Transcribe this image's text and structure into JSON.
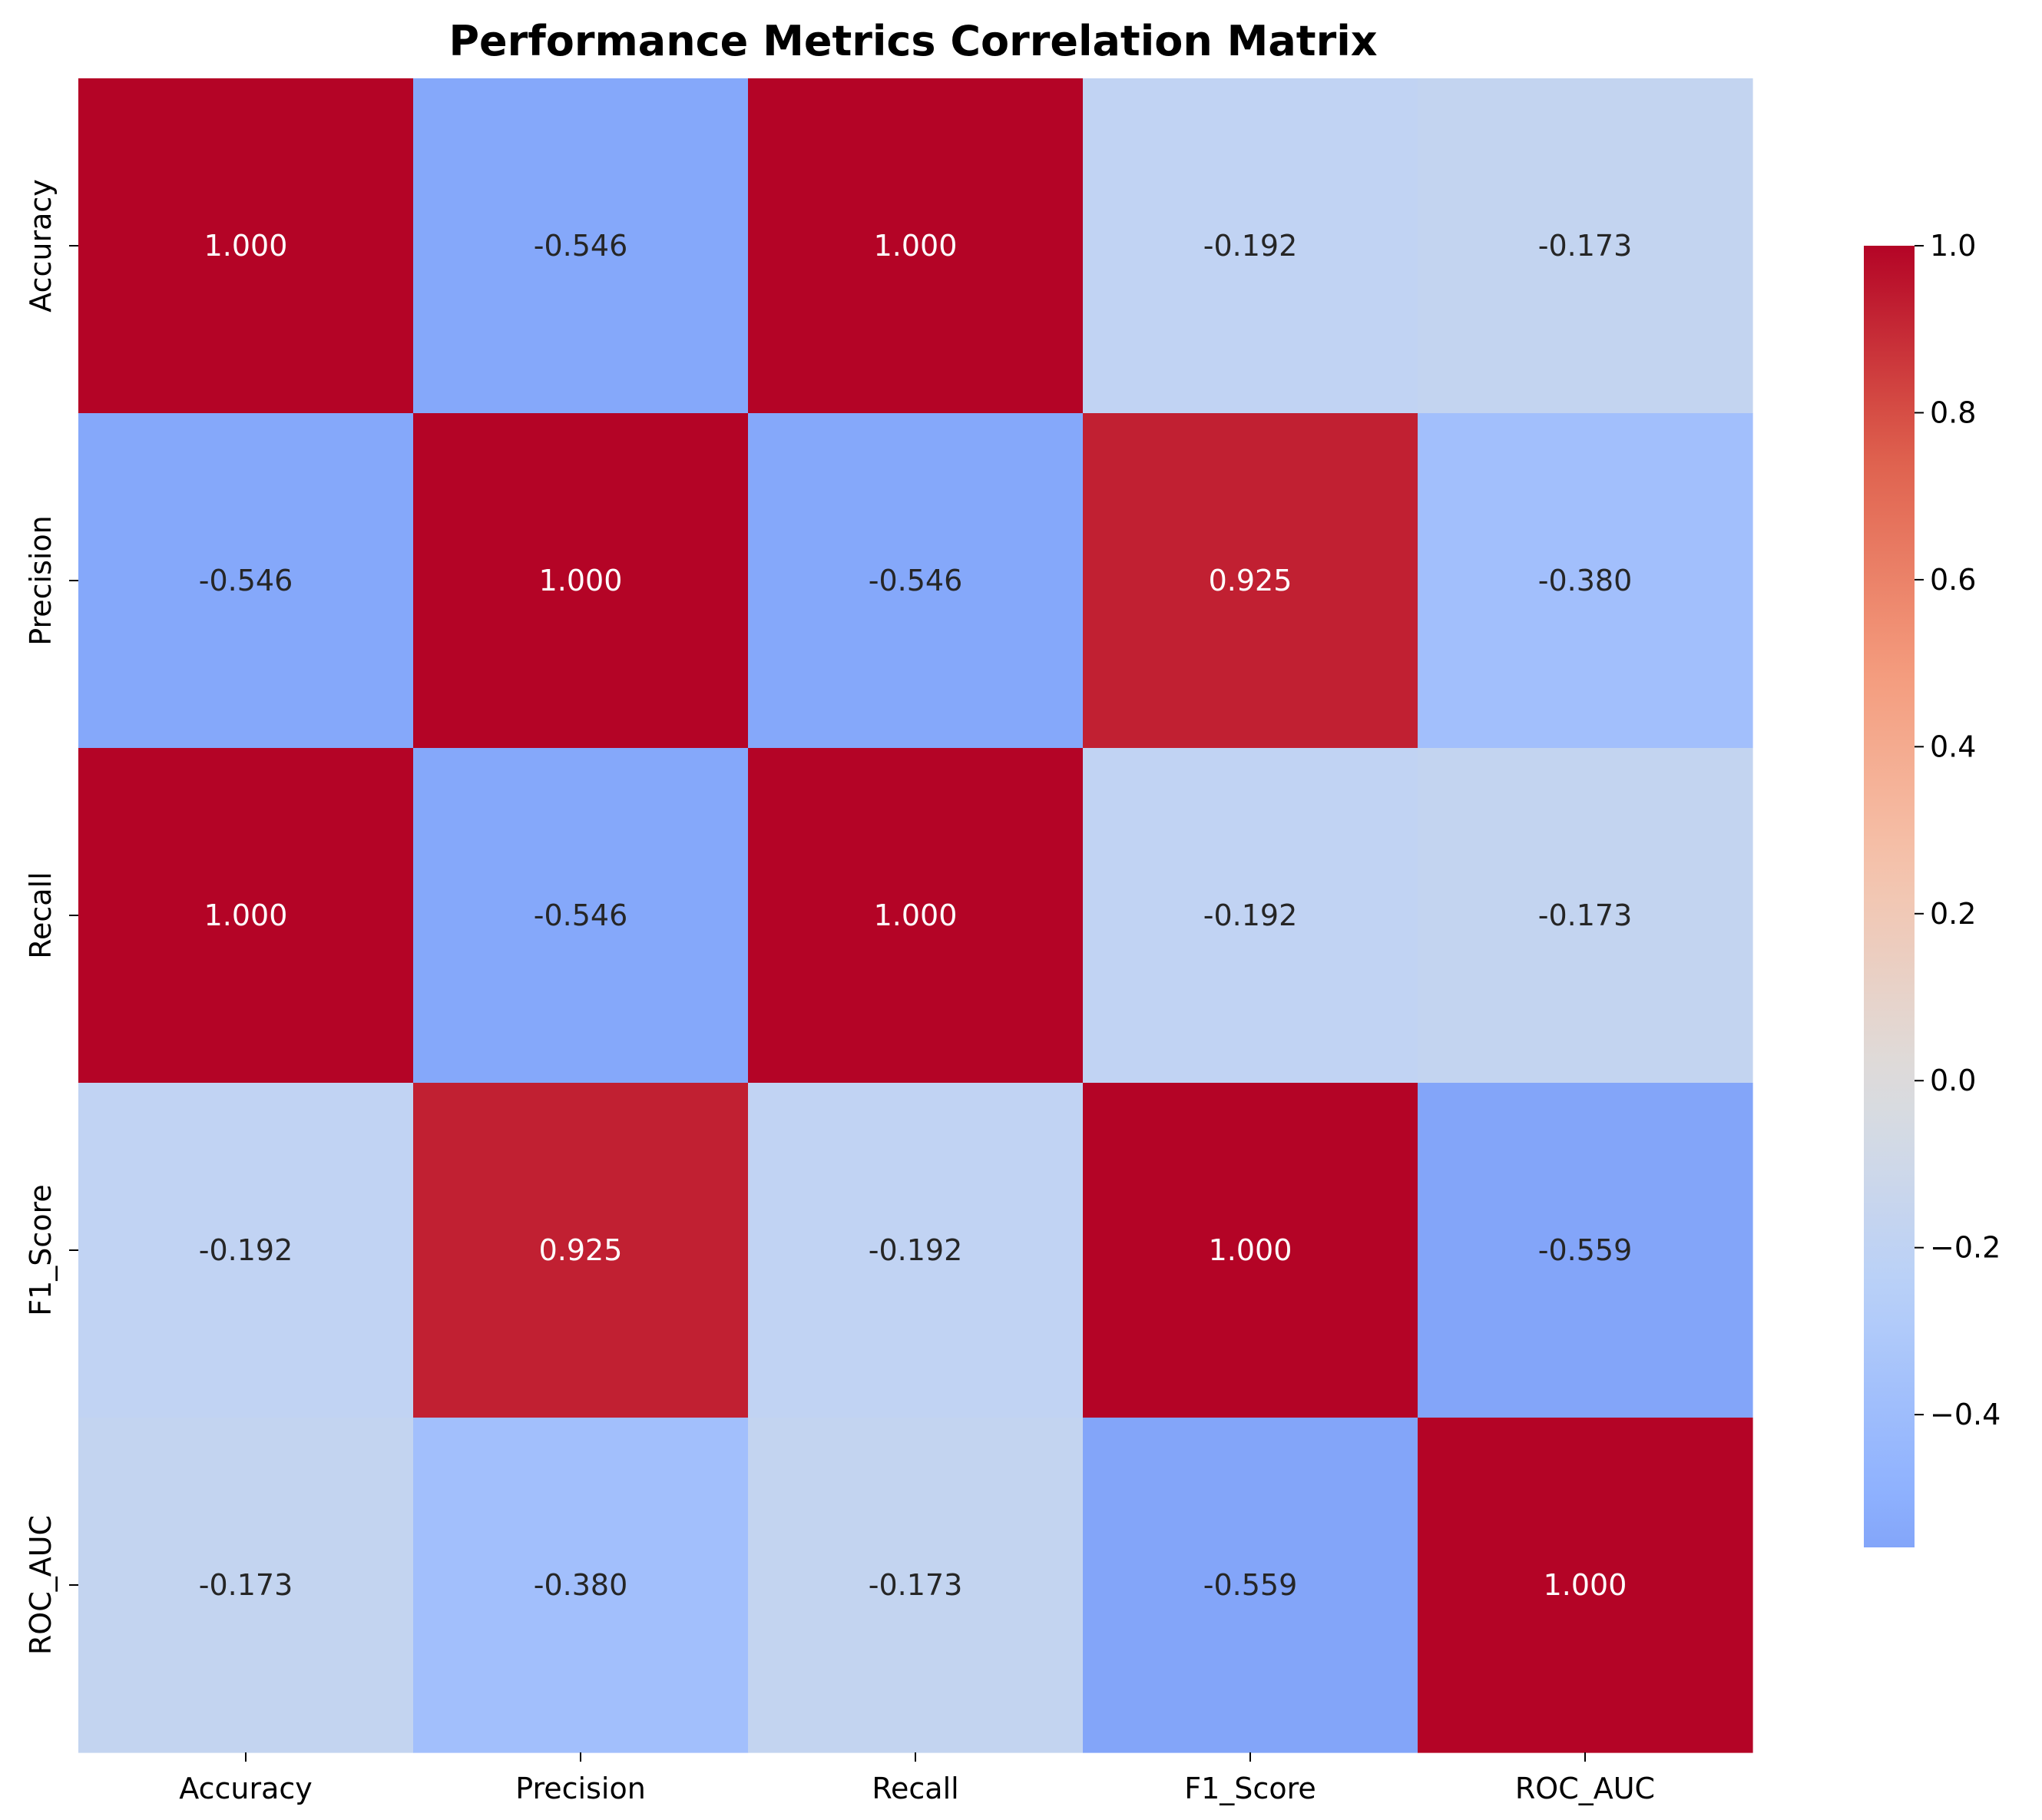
{
  "chart_data": {
    "type": "heatmap",
    "title": "Performance Metrics Correlation Matrix",
    "xlabel": "",
    "ylabel": "",
    "row_labels": [
      "Accuracy",
      "Precision",
      "Recall",
      "F1_Score",
      "ROC_AUC"
    ],
    "col_labels": [
      "Accuracy",
      "Precision",
      "Recall",
      "F1_Score",
      "ROC_AUC"
    ],
    "values": [
      [
        1.0,
        -0.546,
        1.0,
        -0.192,
        -0.173
      ],
      [
        -0.546,
        1.0,
        -0.546,
        0.925,
        -0.38
      ],
      [
        1.0,
        -0.546,
        1.0,
        -0.192,
        -0.173
      ],
      [
        -0.192,
        0.925,
        -0.192,
        1.0,
        -0.559
      ],
      [
        -0.173,
        -0.38,
        -0.173,
        -0.559,
        1.0
      ]
    ],
    "cell_labels": [
      [
        "1.000",
        "-0.546",
        "1.000",
        "-0.192",
        "-0.173"
      ],
      [
        "-0.546",
        "1.000",
        "-0.546",
        "0.925",
        "-0.380"
      ],
      [
        "1.000",
        "-0.546",
        "1.000",
        "-0.192",
        "-0.173"
      ],
      [
        "-0.192",
        "0.925",
        "-0.192",
        "1.000",
        "-0.559"
      ],
      [
        "-0.173",
        "-0.380",
        "-0.173",
        "-0.559",
        "1.000"
      ]
    ],
    "colormap": "coolwarm",
    "vmin": -0.559,
    "vmax": 1.0,
    "center": 0.0,
    "colorbar": {
      "ticks": [
        1.0,
        0.8,
        0.6,
        0.4,
        0.2,
        0.0,
        -0.2,
        -0.4
      ],
      "tick_labels": [
        "1.0",
        "0.8",
        "0.6",
        "0.4",
        "0.2",
        "0.0",
        "−0.2",
        "−0.4"
      ]
    },
    "grid": false,
    "legend": "colorbar-right"
  }
}
